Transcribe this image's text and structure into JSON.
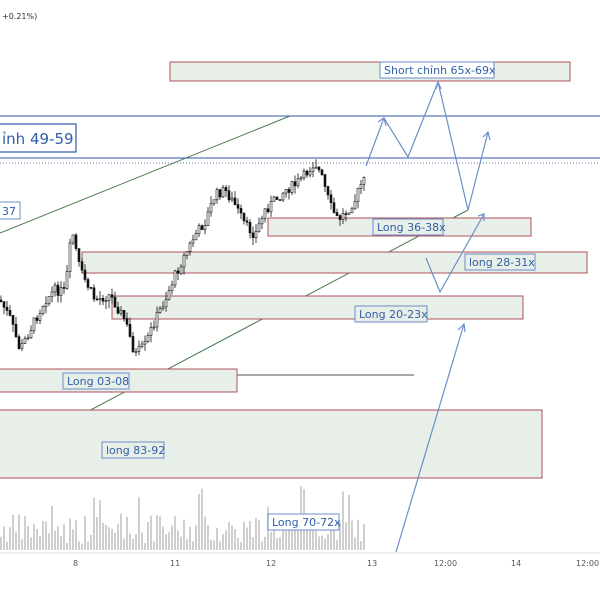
{
  "header": {
    "change_text": "+0.21%)"
  },
  "chart_data": {
    "type": "candlestick",
    "x_ticks": [
      "8",
      "11",
      "12",
      "13",
      "12:00",
      "14",
      "12:00"
    ],
    "zones": [
      {
        "label": "Short chỉnh 65x-69x",
        "kind": "short"
      },
      {
        "label": "Long 36-38x",
        "kind": "long"
      },
      {
        "label": "long 28-31x",
        "kind": "long"
      },
      {
        "label": "Long 20-23x",
        "kind": "long"
      },
      {
        "label": "Long 03-08",
        "kind": "long"
      },
      {
        "label": "long 83-92",
        "kind": "long"
      },
      {
        "label": "Long 70-72x",
        "kind": "long"
      }
    ],
    "level_labels": [
      "ỉnh 49-59",
      "37"
    ],
    "colors": {
      "zone_fill": "#e8eee8",
      "zone_border": "#b0505a",
      "label_blue": "#2f5fa8",
      "channel_line": "#4a7a4a",
      "projection_line": "#6a8fc9",
      "level_line": "#3355aa",
      "candle": "#111111",
      "volume": "#cfcfcf"
    }
  }
}
